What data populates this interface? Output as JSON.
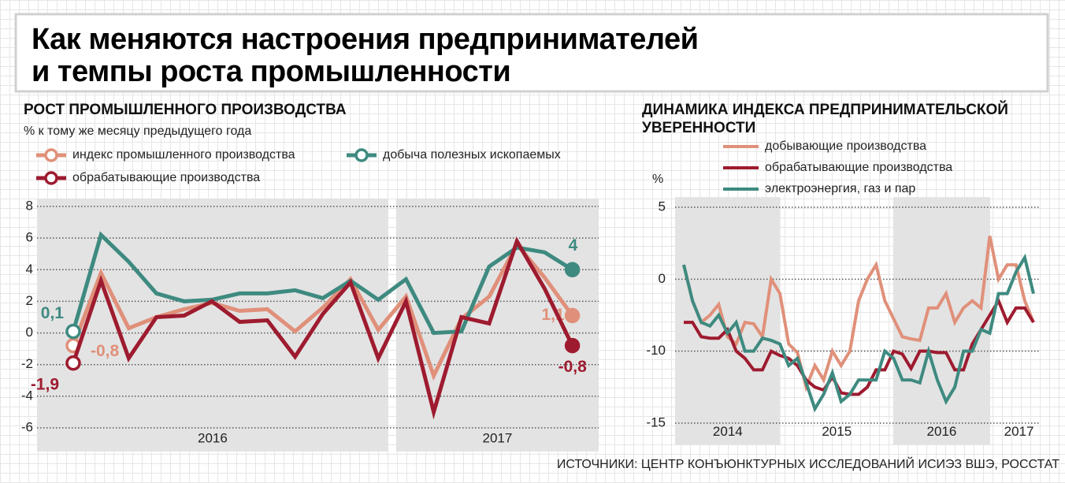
{
  "title": [
    "Как меняются настроения предпринимателей",
    "и темпы роста промышленности"
  ],
  "source": "ИСТОЧНИКИ: ЦЕНТР КОНЪЮНКТУРНЫХ ИССЛЕДОВАНИЙ ИСИЭЗ ВШЭ, РОССТАТ",
  "chart_data": [
    {
      "type": "line",
      "title": [
        "РОСТ ПРОМЫШЛЕННОГО ПРОИЗВОДСТВА"
      ],
      "subtitle": "% к тому же месяцу предыдущего года",
      "categories": [
        null,
        null,
        null,
        null,
        null,
        null,
        null,
        null,
        null,
        null,
        null,
        null,
        null,
        null,
        null,
        null,
        null,
        null,
        null
      ],
      "x_groups": [
        {
          "label": "2016",
          "from": 0,
          "to": 11,
          "shaded": true
        },
        {
          "label": "2017",
          "from": 12,
          "to": 18,
          "shaded": true
        }
      ],
      "ylim": [
        -7.5,
        8.5
      ],
      "yticks": [
        8,
        6,
        4,
        2,
        0,
        -2,
        -4,
        -6
      ],
      "grid": true,
      "series": [
        {
          "name": "индекс промышленного производства",
          "color": "#e0907a",
          "values": [
            -0.8,
            3.8,
            0.3,
            1.0,
            1.5,
            1.9,
            1.4,
            1.5,
            0.1,
            1.6,
            3.4,
            0.2,
            2.3,
            -2.7,
            0.9,
            2.3,
            5.6,
            3.5,
            1.1
          ],
          "value_labels": [
            "-0,8",
            null,
            null,
            null,
            null,
            null,
            null,
            null,
            null,
            null,
            null,
            null,
            null,
            null,
            null,
            null,
            null,
            null,
            "1,1"
          ]
        },
        {
          "name": "добыча полезных ископаемых",
          "color": "#3e8a80",
          "values": [
            0.1,
            6.2,
            4.5,
            2.5,
            2.0,
            2.1,
            2.5,
            2.5,
            2.7,
            2.2,
            3.3,
            2.1,
            3.4,
            0.0,
            0.1,
            4.2,
            5.4,
            5.1,
            4
          ],
          "value_labels": [
            "0,1",
            null,
            null,
            null,
            null,
            null,
            null,
            null,
            null,
            null,
            null,
            null,
            null,
            null,
            null,
            null,
            null,
            null,
            "4"
          ]
        },
        {
          "name": "обрабатывающие производства",
          "color": "#9e1b2f",
          "values": [
            -1.9,
            3.3,
            -1.6,
            1.0,
            1.1,
            2.0,
            0.7,
            0.8,
            -1.5,
            1.2,
            3.2,
            -1.6,
            2.0,
            -5.0,
            1.0,
            0.6,
            5.8,
            2.8,
            -0.8
          ],
          "value_labels": [
            "-1,9",
            null,
            null,
            null,
            null,
            null,
            null,
            null,
            null,
            null,
            null,
            null,
            null,
            null,
            null,
            null,
            null,
            null,
            "-0,8"
          ]
        }
      ]
    },
    {
      "type": "line",
      "title": [
        "ДИНАМИКА ИНДЕКСА ПРЕДПРИНИМАТЕЛЬСКОЙ",
        "УВЕРЕННОСТИ"
      ],
      "ylabel": "%",
      "categories": [
        null,
        null,
        null,
        null,
        null,
        null,
        null,
        null,
        null,
        null,
        null,
        null,
        null,
        null,
        null,
        null,
        null,
        null,
        null,
        null,
        null,
        null,
        null,
        null,
        null,
        null,
        null,
        null,
        null,
        null,
        null,
        null,
        null,
        null,
        null,
        null,
        null,
        null,
        null,
        null,
        null
      ],
      "x_groups": [
        {
          "label": "2014",
          "from": 0,
          "to": 11,
          "shaded": true
        },
        {
          "label": "2015",
          "from": 12,
          "to": 23,
          "shaded": false
        },
        {
          "label": "2016",
          "from": 24,
          "to": 35,
          "shaded": true
        },
        {
          "label": "2017",
          "from": 36,
          "to": 40,
          "shaded": false
        }
      ],
      "ylim": [
        -16.5,
        5.7
      ],
      "yticks": [
        5,
        0,
        -10,
        -15
      ],
      "grid": true,
      "series": [
        {
          "name": "добывающие производства",
          "color": "#e0907a",
          "values": [
            1,
            -3,
            -6,
            -5,
            -3.5,
            -8,
            -9,
            -6,
            -6.2,
            -8,
            0,
            -2,
            -9,
            -10.1,
            -12.5,
            -11,
            -12,
            -10,
            -11,
            -10,
            -3,
            0,
            1,
            -3,
            -5.5,
            -8,
            -8.3,
            -8.5,
            -4,
            -4,
            -2,
            -6,
            -4,
            -3,
            -4,
            3,
            0,
            1,
            1,
            -3,
            -6
          ]
        },
        {
          "name": "обрабатывающие производства",
          "color": "#9e1b2f",
          "values": [
            -6,
            -6,
            -8,
            -8.2,
            -8.2,
            -7,
            -10,
            -10.5,
            -11.3,
            -11.3,
            -10,
            -10.3,
            -10.5,
            -11,
            -12,
            -12.5,
            -12.7,
            -11.8,
            -12.9,
            -13,
            -13,
            -12.5,
            -11.3,
            -11.3,
            -10,
            -10.2,
            -11.2,
            -10,
            -10,
            -10.1,
            -10.1,
            -11.3,
            -11.3,
            -9,
            -7,
            -5,
            -3,
            -6,
            -4,
            -4,
            -6
          ]
        },
        {
          "name": "электроэнергия, газ и пар",
          "color": "#3e8a80",
          "values": [
            1,
            -3,
            -6,
            -6.5,
            -5,
            -7.5,
            -6,
            -10,
            -10,
            -8.2,
            -8.5,
            -9,
            -11,
            -10.5,
            -12.2,
            -14,
            -13,
            -11.5,
            -13.5,
            -13,
            -12,
            -12,
            -12,
            -10,
            -10.5,
            -12,
            -12,
            -12.2,
            -10,
            -12,
            -13.5,
            -12.5,
            -10,
            -10,
            -7,
            -7.5,
            -2,
            -2,
            0.5,
            1.5,
            -2
          ]
        }
      ]
    }
  ]
}
